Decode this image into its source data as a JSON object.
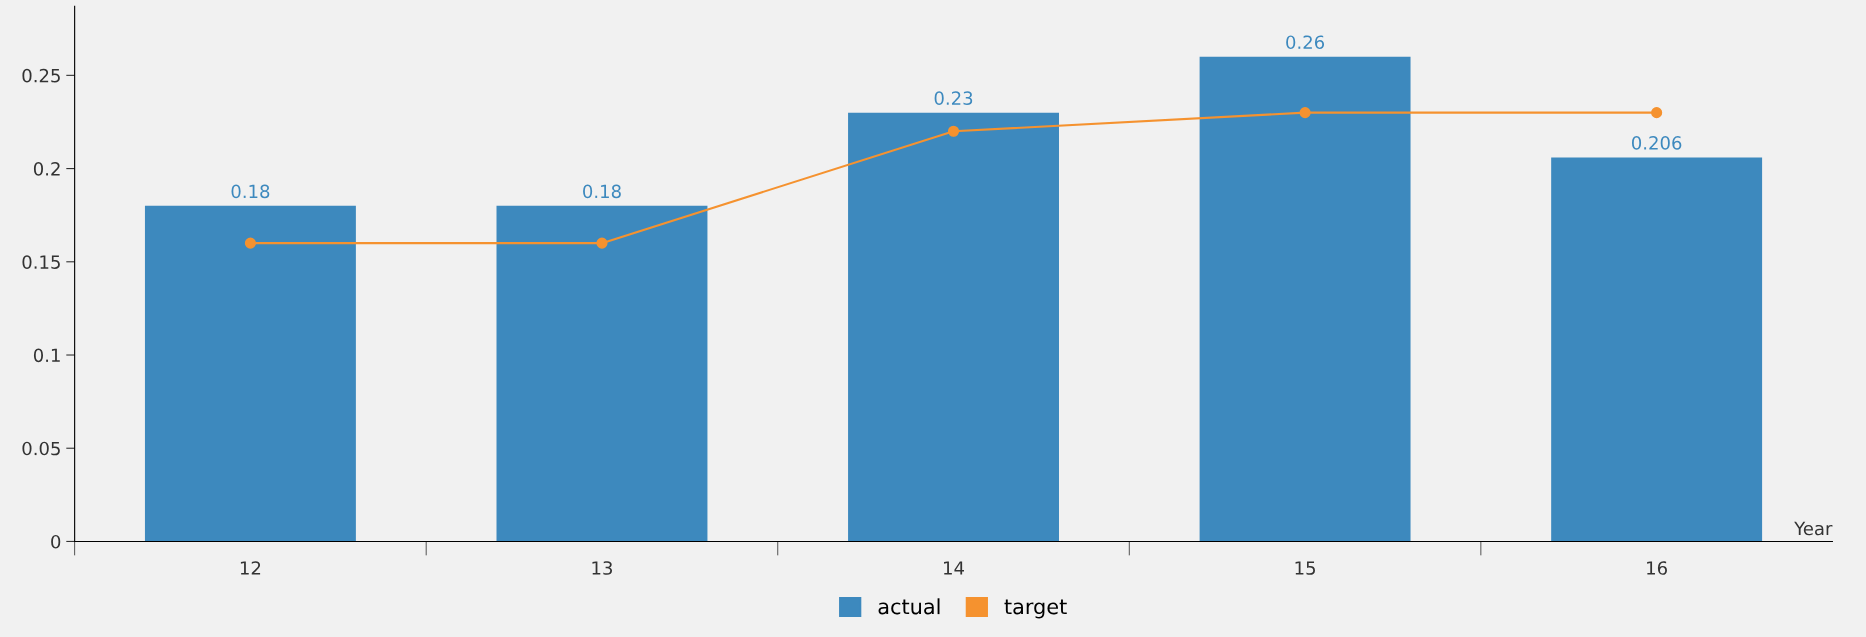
{
  "chart_data": {
    "type": "bar",
    "xlabel": "Year",
    "categories": [
      "12",
      "13",
      "14",
      "15",
      "16"
    ],
    "series": [
      {
        "name": "actual",
        "color": "#3d89be",
        "values": [
          0.18,
          0.18,
          0.23,
          0.26,
          0.206
        ],
        "value_labels": [
          "0.18",
          "0.18",
          "0.23",
          "0.26",
          "0.206"
        ]
      },
      {
        "name": "target",
        "type": "line",
        "color": "#f5922f",
        "values": [
          0.16,
          0.16,
          0.22,
          0.23,
          0.23
        ],
        "marker": "circle",
        "line_style": "solid"
      }
    ],
    "ylim": [
      0,
      0.287
    ],
    "yticks": [
      0,
      0.05,
      0.1,
      0.15,
      0.2,
      0.25
    ],
    "grid": false,
    "legend": "bottom"
  }
}
